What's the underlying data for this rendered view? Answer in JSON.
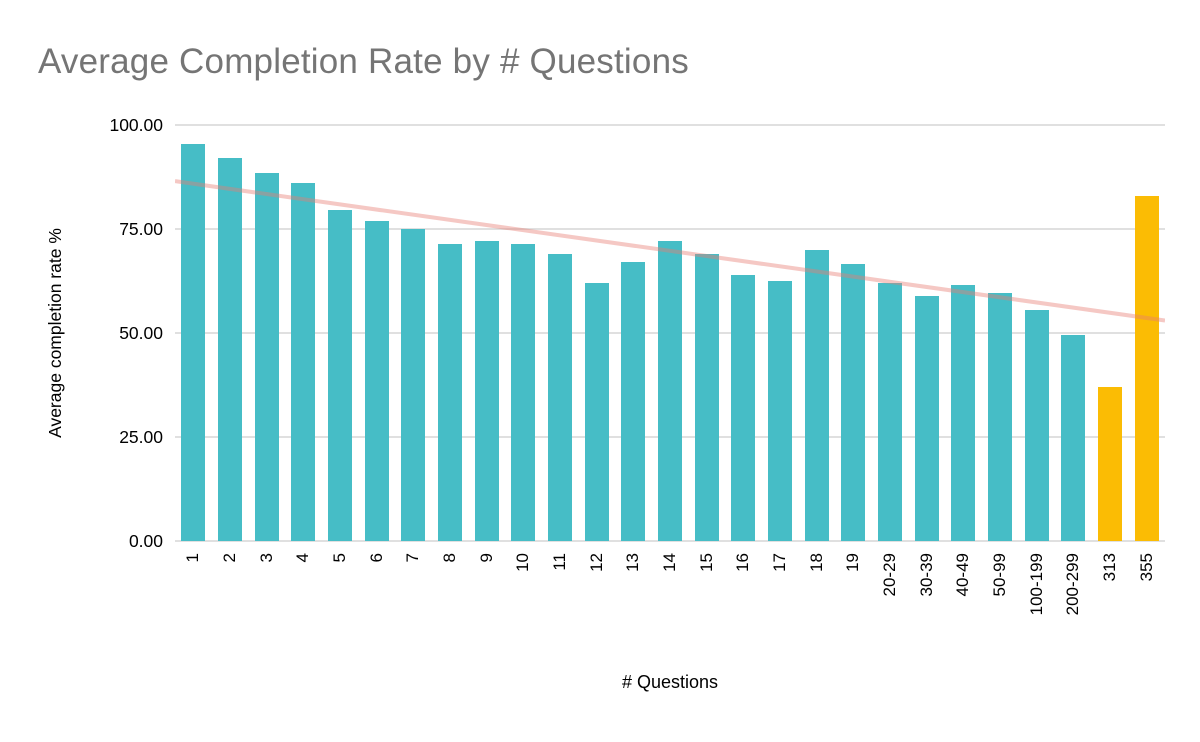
{
  "chart_data": {
    "type": "bar",
    "title": "Average Completion Rate by # Questions",
    "xlabel": "# Questions",
    "ylabel": "Average completion rate %",
    "ylim": [
      0,
      100
    ],
    "grid": true,
    "y_ticks": [
      {
        "value": 0,
        "label": "0.00"
      },
      {
        "value": 25,
        "label": "25.00"
      },
      {
        "value": 50,
        "label": "50.00"
      },
      {
        "value": 75,
        "label": "75.00"
      },
      {
        "value": 100,
        "label": "100.00"
      }
    ],
    "categories": [
      "1",
      "2",
      "3",
      "4",
      "5",
      "6",
      "7",
      "8",
      "9",
      "10",
      "11",
      "12",
      "13",
      "14",
      "15",
      "16",
      "17",
      "18",
      "19",
      "20-29",
      "30-39",
      "40-49",
      "50-99",
      "100-199",
      "200-299",
      "313",
      "355"
    ],
    "values": [
      95.5,
      92,
      88.5,
      86,
      79.5,
      77,
      75,
      71.5,
      72,
      71.5,
      69,
      62,
      67,
      72,
      69,
      64,
      62.5,
      70,
      66.5,
      62,
      59,
      61.5,
      59.5,
      55.5,
      49.5,
      37,
      83
    ],
    "bar_default_color": "#46bdc6",
    "bar_highlight_color": "#fbbc04",
    "highlighted_categories": [
      "313",
      "355"
    ],
    "trendline": {
      "start_value": 86.5,
      "end_value": 53,
      "color": "#e67c73",
      "opacity": 0.42,
      "width": 4
    },
    "gridline_color": "#e0e0e0",
    "title_color": "#757575"
  }
}
